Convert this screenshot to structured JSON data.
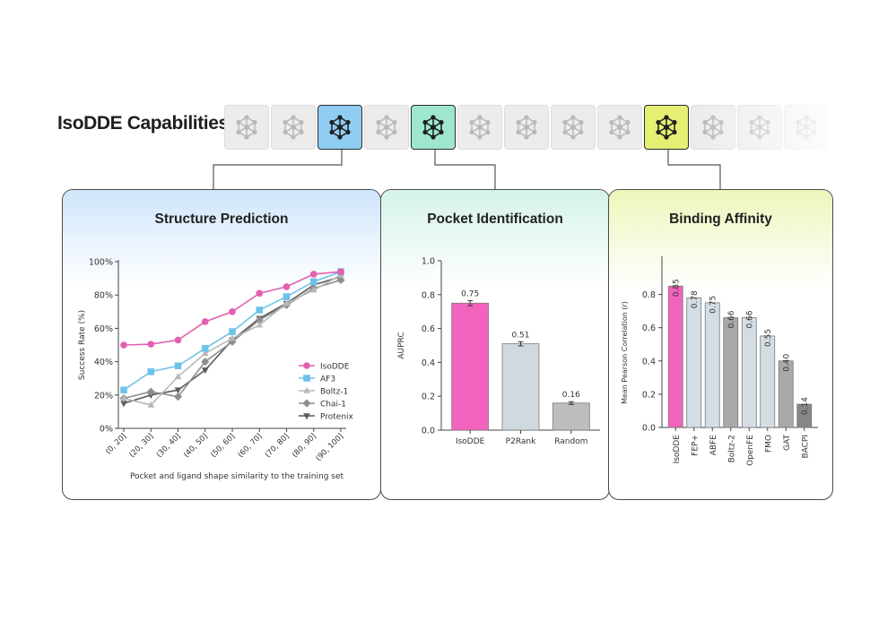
{
  "header": {
    "title": "IsoDDE Capabilities"
  },
  "capability_strip": {
    "icon": "network-graph-icon",
    "tiles": [
      {
        "state": "inactive"
      },
      {
        "state": "inactive"
      },
      {
        "state": "active",
        "color": "#8fcdf3"
      },
      {
        "state": "inactive"
      },
      {
        "state": "active",
        "color": "#9ee6cc"
      },
      {
        "state": "inactive"
      },
      {
        "state": "inactive"
      },
      {
        "state": "inactive"
      },
      {
        "state": "inactive"
      },
      {
        "state": "active",
        "color": "#e4ef73"
      },
      {
        "state": "inactive"
      },
      {
        "state": "inactive"
      },
      {
        "state": "inactive"
      }
    ]
  },
  "panels": [
    {
      "title": "Structure Prediction",
      "gradient_color": "#cfe6fb"
    },
    {
      "title": "Pocket Identification",
      "gradient_color": "#d5f3e8"
    },
    {
      "title": "Binding Affinity",
      "gradient_color": "#edf6bb"
    }
  ],
  "chart_data": [
    {
      "type": "line",
      "title": "Structure Prediction",
      "xlabel": "Pocket and ligand shape similarity to the training set",
      "ylabel": "Success Rate (%)",
      "categories": [
        "(0, 20]",
        "(20, 30]",
        "(30, 40]",
        "(40, 50]",
        "(50, 60]",
        "(60, 70]",
        "(70, 80]",
        "(80, 90]",
        "(90, 100]"
      ],
      "yticks": [
        "0%",
        "20%",
        "40%",
        "60%",
        "80%",
        "100%"
      ],
      "ylim": [
        0,
        100
      ],
      "legend_position": "right",
      "series": [
        {
          "name": "IsoDDE",
          "color": "#e35fb0",
          "marker": "circle",
          "values": [
            50,
            50.5,
            53,
            64,
            70,
            81,
            85,
            92.5,
            94
          ]
        },
        {
          "name": "AF3",
          "color": "#6ec3e8",
          "marker": "square",
          "values": [
            23,
            34,
            37.5,
            48,
            58,
            71,
            79,
            88,
            94
          ]
        },
        {
          "name": "Boltz-1",
          "color": "#b9b9b9",
          "marker": "triangle-up",
          "values": [
            18,
            14,
            31,
            45,
            54,
            62,
            75,
            83,
            92
          ]
        },
        {
          "name": "Chai-1",
          "color": "#8f8f8f",
          "marker": "diamond",
          "values": [
            18,
            22,
            19,
            40,
            52,
            65,
            74,
            84,
            89
          ]
        },
        {
          "name": "Protenix",
          "color": "#5b5b5b",
          "marker": "triangle-down",
          "values": [
            15,
            20,
            23,
            35,
            53,
            66,
            75,
            86,
            91
          ]
        }
      ]
    },
    {
      "type": "bar",
      "title": "Pocket Identification",
      "ylabel": "AUPRC",
      "categories": [
        "IsoDDE",
        "P2Rank",
        "Random"
      ],
      "values": [
        0.75,
        0.51,
        0.16
      ],
      "value_labels": [
        "0.75",
        "0.51",
        "0.16"
      ],
      "errors": [
        0.015,
        0.012,
        0.008
      ],
      "colors": [
        "#f263bd",
        "#d0d9e0",
        "#bdbdbd"
      ],
      "yticks": [
        "0.0",
        "0.2",
        "0.4",
        "0.6",
        "0.8",
        "1.0"
      ],
      "ylim": [
        0,
        1.0
      ]
    },
    {
      "type": "bar",
      "title": "Binding Affinity",
      "ylabel": "Mean Pearson Correlation (r)",
      "categories": [
        "IsoDDE",
        "FEP+",
        "ABFE",
        "Boltz-2",
        "OpenFE",
        "FMO",
        "GAT",
        "BACPI"
      ],
      "values": [
        0.85,
        0.78,
        0.75,
        0.66,
        0.66,
        0.55,
        0.4,
        0.14
      ],
      "value_labels": [
        "0.85",
        "0.78",
        "0.75",
        "0.66",
        "0.66",
        "0.55",
        "0.40",
        "0.14"
      ],
      "colors": [
        "#f263bd",
        "#d4dde4",
        "#d4dde4",
        "#a9a9a9",
        "#d4dde4",
        "#d4dde4",
        "#a9a9a9",
        "#878787"
      ],
      "yticks": [
        "0.0",
        "0.2",
        "0.4",
        "0.6",
        "0.8"
      ],
      "ylim": [
        0,
        0.9
      ]
    }
  ]
}
